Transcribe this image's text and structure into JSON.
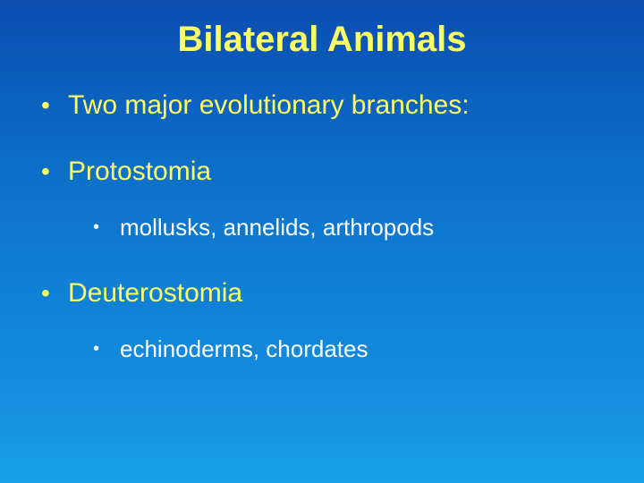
{
  "slide": {
    "title": "Bilateral Animals",
    "background_gradient": [
      "#0a4db0",
      "#0d6fc8",
      "#1080d5",
      "#1590e0",
      "#18a0ea"
    ],
    "title_color": "#ffff66",
    "title_fontsize": 40,
    "level1_color": "#ffff66",
    "level1_fontsize": 30,
    "level2_color": "#ffffff",
    "level2_fontsize": 26,
    "bullets": [
      {
        "level": 1,
        "text": "Two major evolutionary branches:"
      },
      {
        "level": 1,
        "text": "Protostomia"
      },
      {
        "level": 2,
        "text": "mollusks, annelids, arthropods"
      },
      {
        "level": 1,
        "text": "Deuterostomia"
      },
      {
        "level": 2,
        "text": "echinoderms, chordates"
      }
    ]
  }
}
